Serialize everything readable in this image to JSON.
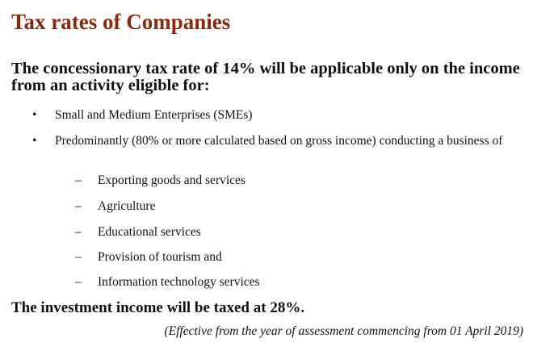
{
  "title": "Tax rates of Companies",
  "intro": "The concessionary tax rate of 14% will be applicable only on the income from an activity eligible for:",
  "bullets": [
    "Small and Medium Enterprises (SMEs)",
    "Predominantly (80% or more calculated based on gross income) conducting a business of"
  ],
  "sub_items": [
    "Exporting goods and services",
    "Agriculture",
    "Educational services",
    "Provision of tourism and",
    "Information technology services"
  ],
  "bullet_symbol": "•",
  "dash_symbol": "–",
  "investment": "The investment income will be taxed at 28%.",
  "effective": "(Effective from the year of assessment commencing from 01 April 2019)",
  "colors": {
    "title": "#8b2a0a"
  }
}
